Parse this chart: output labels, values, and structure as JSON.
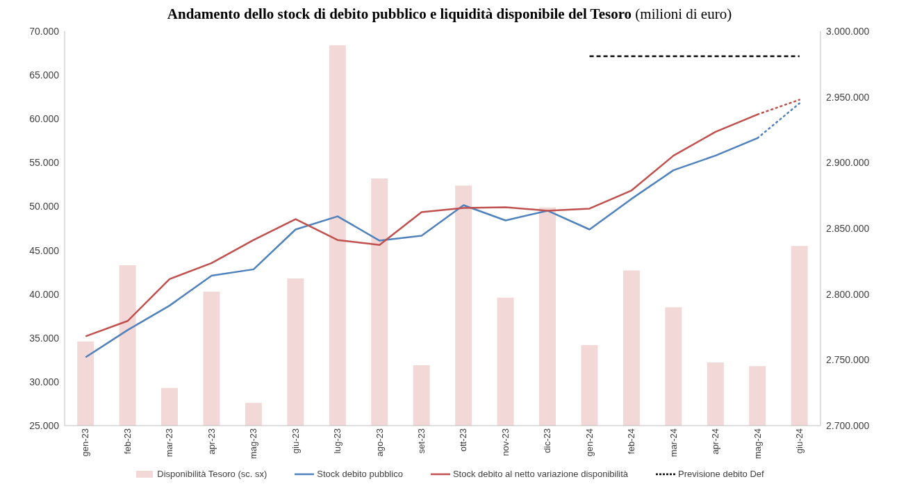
{
  "chart_data": {
    "type": "bar",
    "title": "Andamento dello stock di debito pubblico e liquidità disponibile del Tesoro",
    "subtitle": "(milioni di euro)",
    "categories": [
      "gen-23",
      "feb-23",
      "mar-23",
      "apr-23",
      "mag-23",
      "giu-23",
      "lug-23",
      "ago-23",
      "set-23",
      "ott-23",
      "nov-23",
      "dic-23",
      "gen-24",
      "feb-24",
      "mar-24",
      "apr-24",
      "mag-24",
      "giu-24"
    ],
    "series": [
      {
        "name": "Disponibilità Tesoro (sc. sx)",
        "color": "#f2d9d7",
        "values": [
          34600,
          43300,
          29300,
          40300,
          27600,
          41800,
          68400,
          53200,
          31900,
          52400,
          39600,
          49900,
          34200,
          42700,
          38500,
          32200,
          31800,
          45500
        ]
      },
      {
        "name": "Stock debito pubblico",
        "type": "line",
        "axis": "y2",
        "color": "#4f81bd",
        "line_style": "solid",
        "values": [
          2752000,
          2772700,
          2791300,
          2814100,
          2818900,
          2849200,
          2859200,
          2840700,
          2844400,
          2867700,
          2856100,
          2863500,
          2849200,
          2872500,
          2894300,
          2905400,
          2918700,
          null
        ]
      },
      {
        "name": "Stock debito al netto variazione disponibilità",
        "type": "line",
        "axis": "y2",
        "color": "#c0504d",
        "line_style": "solid",
        "values": [
          2767900,
          2779600,
          2811500,
          2823700,
          2841200,
          2857100,
          2841200,
          2837500,
          2862400,
          2865600,
          2866100,
          2863500,
          2865100,
          2878900,
          2905400,
          2923500,
          2936700,
          null
        ]
      },
      {
        "type": "line",
        "axis": "y2",
        "color": "#4f81bd",
        "line_style": "dotted",
        "values": [
          null,
          null,
          null,
          null,
          null,
          null,
          null,
          null,
          null,
          null,
          null,
          null,
          null,
          null,
          null,
          null,
          2918700,
          2945200
        ]
      },
      {
        "type": "line",
        "axis": "y2",
        "color": "#c0504d",
        "line_style": "dotted",
        "values": [
          null,
          null,
          null,
          null,
          null,
          null,
          null,
          null,
          null,
          null,
          null,
          null,
          null,
          null,
          null,
          null,
          2936700,
          2947900
        ]
      },
      {
        "name": "Previsione debito Def",
        "type": "line",
        "axis": "y2",
        "color": "#000000",
        "line_style": "dashed",
        "values": [
          null,
          null,
          null,
          null,
          null,
          null,
          null,
          null,
          null,
          null,
          null,
          null,
          2981000,
          2981000,
          2981000,
          2981000,
          2981000,
          2981000
        ]
      }
    ],
    "ylim": [
      25000,
      70000
    ],
    "yticks": [
      {
        "value": 25000,
        "label": "25.000"
      },
      {
        "value": 30000,
        "label": "30.000"
      },
      {
        "value": 35000,
        "label": "35.000"
      },
      {
        "value": 40000,
        "label": "40.000"
      },
      {
        "value": 45000,
        "label": "45.000"
      },
      {
        "value": 50000,
        "label": "50.000"
      },
      {
        "value": 55000,
        "label": "55.000"
      },
      {
        "value": 60000,
        "label": "60.000"
      },
      {
        "value": 65000,
        "label": "65.000"
      },
      {
        "value": 70000,
        "label": "70.000"
      }
    ],
    "y2lim": [
      2700000,
      3000000
    ],
    "y2ticks": [
      {
        "value": 2700000,
        "label": "2.700.000"
      },
      {
        "value": 2750000,
        "label": "2.750.000"
      },
      {
        "value": 2800000,
        "label": "2.800.000"
      },
      {
        "value": 2850000,
        "label": "2.850.000"
      },
      {
        "value": 2900000,
        "label": "2.900.000"
      },
      {
        "value": 2950000,
        "label": "2.950.000"
      },
      {
        "value": 3000000,
        "label": "3.000.000"
      }
    ],
    "grid": false,
    "legend": "bottom"
  }
}
